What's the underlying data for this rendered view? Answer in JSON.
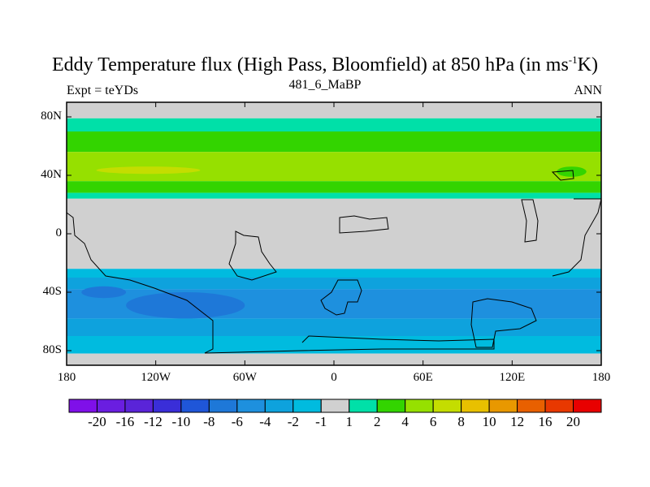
{
  "chart_data": {
    "type": "heatmap",
    "title_main": "Eddy Temperature flux (High Pass, Bloomfield) at 850 hPa (in ms",
    "title_sup": "-1",
    "title_end": "K)",
    "left_label": "Expt = teYDs",
    "center_label": "481_6_MaBP",
    "right_label": "ANN",
    "xlim": [
      -180,
      180
    ],
    "ylim": [
      -90,
      90
    ],
    "x_ticks": [
      {
        "value": -180,
        "label": "180"
      },
      {
        "value": -120,
        "label": "120W"
      },
      {
        "value": -60,
        "label": "60W"
      },
      {
        "value": 0,
        "label": "0"
      },
      {
        "value": 60,
        "label": "60E"
      },
      {
        "value": 120,
        "label": "120E"
      },
      {
        "value": 180,
        "label": "180"
      }
    ],
    "y_ticks": [
      {
        "value": 80,
        "label": "80N"
      },
      {
        "value": 40,
        "label": "40N"
      },
      {
        "value": 0,
        "label": "0"
      },
      {
        "value": -40,
        "label": "40S"
      },
      {
        "value": -80,
        "label": "80S"
      }
    ],
    "colorbar": {
      "colors": [
        "#7f10e9",
        "#6a1ee0",
        "#5a24d8",
        "#3a2ed8",
        "#1f56d8",
        "#1e78d8",
        "#1e90de",
        "#0ea2dd",
        "#00bbdf",
        "#d0d0d0",
        "#00e0a8",
        "#33d400",
        "#96e000",
        "#c4dd00",
        "#e8c000",
        "#e89800",
        "#e86000",
        "#e83800",
        "#e80000"
      ],
      "labels": [
        "-20",
        "-16",
        "-12",
        "-10",
        "-8",
        "-6",
        "-4",
        "-2",
        "-1",
        "1",
        "2",
        "4",
        "6",
        "8",
        "10",
        "12",
        "16",
        "20"
      ]
    },
    "bands": [
      {
        "lat_max": 90,
        "lat_min": 79,
        "value": 0
      },
      {
        "lat_max": 79,
        "lat_min": 70,
        "value": 1.5
      },
      {
        "lat_max": 70,
        "lat_min": 56,
        "value": 3
      },
      {
        "lat_max": 56,
        "lat_min": 36,
        "value": 5
      },
      {
        "lat_max": 36,
        "lat_min": 28,
        "value": 3
      },
      {
        "lat_max": 28,
        "lat_min": 24,
        "value": 1.5
      },
      {
        "lat_max": 24,
        "lat_min": -24,
        "value": 0
      },
      {
        "lat_max": -24,
        "lat_min": -30,
        "value": -1.5
      },
      {
        "lat_max": -30,
        "lat_min": -38,
        "value": -3
      },
      {
        "lat_max": -38,
        "lat_min": -58,
        "value": -5
      },
      {
        "lat_max": -58,
        "lat_min": -70,
        "value": -3
      },
      {
        "lat_max": -70,
        "lat_min": -82,
        "value": -1.5
      },
      {
        "lat_max": -82,
        "lat_min": -90,
        "value": 0
      }
    ],
    "features": [
      {
        "lon": [
          -160,
          -90
        ],
        "lat": [
          41,
          46
        ],
        "value": 7
      },
      {
        "lon": [
          -120,
          -80
        ],
        "lat": [
          -47,
          -53
        ],
        "value": -9
      },
      {
        "lon": [
          -140,
          -60
        ],
        "lat": [
          -40,
          -58
        ],
        "value": -7
      },
      {
        "lon": [
          -170,
          -140
        ],
        "lat": [
          -36,
          -44
        ],
        "value": -7
      },
      {
        "lon": [
          150,
          170
        ],
        "lat": [
          39,
          46
        ],
        "value": 3
      }
    ]
  }
}
